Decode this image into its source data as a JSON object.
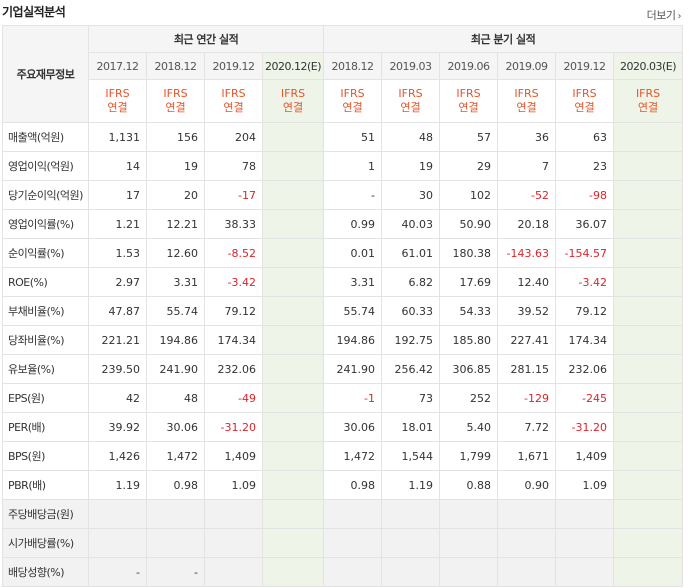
{
  "header": {
    "title": "기업실적분석",
    "more_label": "더보기",
    "more_icon": "chevron-right-icon"
  },
  "table": {
    "row_header_label": "주요재무정보",
    "annual_label": "최근 연간 실적",
    "quarter_label": "최근 분기 실적",
    "ifrs_label": "IFRS",
    "consolidated_label": "연결",
    "annual_periods": [
      "2017.12",
      "2018.12",
      "2019.12",
      "2020.12(E)"
    ],
    "quarter_periods": [
      "2018.12",
      "2019.03",
      "2019.06",
      "2019.09",
      "2019.12",
      "2020.03(E)"
    ],
    "rows": [
      {
        "label": "매출액(억원)",
        "annual": [
          "1,131",
          "156",
          "204",
          ""
        ],
        "quarter": [
          "51",
          "48",
          "57",
          "36",
          "63",
          ""
        ]
      },
      {
        "label": "영업이익(억원)",
        "annual": [
          "14",
          "19",
          "78",
          ""
        ],
        "quarter": [
          "1",
          "19",
          "29",
          "7",
          "23",
          ""
        ]
      },
      {
        "label": "당기순이익(억원)",
        "annual": [
          "17",
          "20",
          "-17",
          ""
        ],
        "quarter": [
          "-",
          "30",
          "102",
          "-52",
          "-98",
          ""
        ]
      },
      {
        "label": "영업이익률(%)",
        "annual": [
          "1.21",
          "12.21",
          "38.33",
          ""
        ],
        "quarter": [
          "0.99",
          "40.03",
          "50.90",
          "20.18",
          "36.07",
          ""
        ]
      },
      {
        "label": "순이익률(%)",
        "annual": [
          "1.53",
          "12.60",
          "-8.52",
          ""
        ],
        "quarter": [
          "0.01",
          "61.01",
          "180.38",
          "-143.63",
          "-154.57",
          ""
        ]
      },
      {
        "label": "ROE(%)",
        "annual": [
          "2.97",
          "3.31",
          "-3.42",
          ""
        ],
        "quarter": [
          "3.31",
          "6.82",
          "17.69",
          "12.40",
          "-3.42",
          ""
        ]
      },
      {
        "label": "부채비율(%)",
        "annual": [
          "47.87",
          "55.74",
          "79.12",
          ""
        ],
        "quarter": [
          "55.74",
          "60.33",
          "54.33",
          "39.52",
          "79.12",
          ""
        ]
      },
      {
        "label": "당좌비율(%)",
        "annual": [
          "221.21",
          "194.86",
          "174.34",
          ""
        ],
        "quarter": [
          "194.86",
          "192.75",
          "185.80",
          "227.41",
          "174.34",
          ""
        ]
      },
      {
        "label": "유보율(%)",
        "annual": [
          "239.50",
          "241.90",
          "232.06",
          ""
        ],
        "quarter": [
          "241.90",
          "256.42",
          "306.85",
          "281.15",
          "232.06",
          ""
        ]
      },
      {
        "label": "EPS(원)",
        "annual": [
          "42",
          "48",
          "-49",
          ""
        ],
        "quarter": [
          "-1",
          "73",
          "252",
          "-129",
          "-245",
          ""
        ]
      },
      {
        "label": "PER(배)",
        "annual": [
          "39.92",
          "30.06",
          "-31.20",
          ""
        ],
        "quarter": [
          "30.06",
          "18.01",
          "5.40",
          "7.72",
          "-31.20",
          ""
        ]
      },
      {
        "label": "BPS(원)",
        "annual": [
          "1,426",
          "1,472",
          "1,409",
          ""
        ],
        "quarter": [
          "1,472",
          "1,544",
          "1,799",
          "1,671",
          "1,409",
          ""
        ]
      },
      {
        "label": "PBR(배)",
        "annual": [
          "1.19",
          "0.98",
          "1.09",
          ""
        ],
        "quarter": [
          "0.98",
          "1.19",
          "0.88",
          "0.90",
          "1.09",
          ""
        ]
      },
      {
        "label": "주당배당금(원)",
        "annual": [
          "",
          "",
          "",
          ""
        ],
        "quarter": [
          "",
          "",
          "",
          "",
          "",
          ""
        ]
      },
      {
        "label": "시가배당률(%)",
        "annual": [
          "",
          "",
          "",
          ""
        ],
        "quarter": [
          "",
          "",
          "",
          "",
          "",
          ""
        ]
      },
      {
        "label": "배당성향(%)",
        "annual": [
          "-",
          "-",
          "",
          ""
        ],
        "quarter": [
          "",
          "",
          "",
          "",
          "",
          ""
        ]
      }
    ]
  },
  "colors": {
    "negative": "#d8262c",
    "ifrs": "#e4552a",
    "estimate_bg": "#eef5e8"
  }
}
